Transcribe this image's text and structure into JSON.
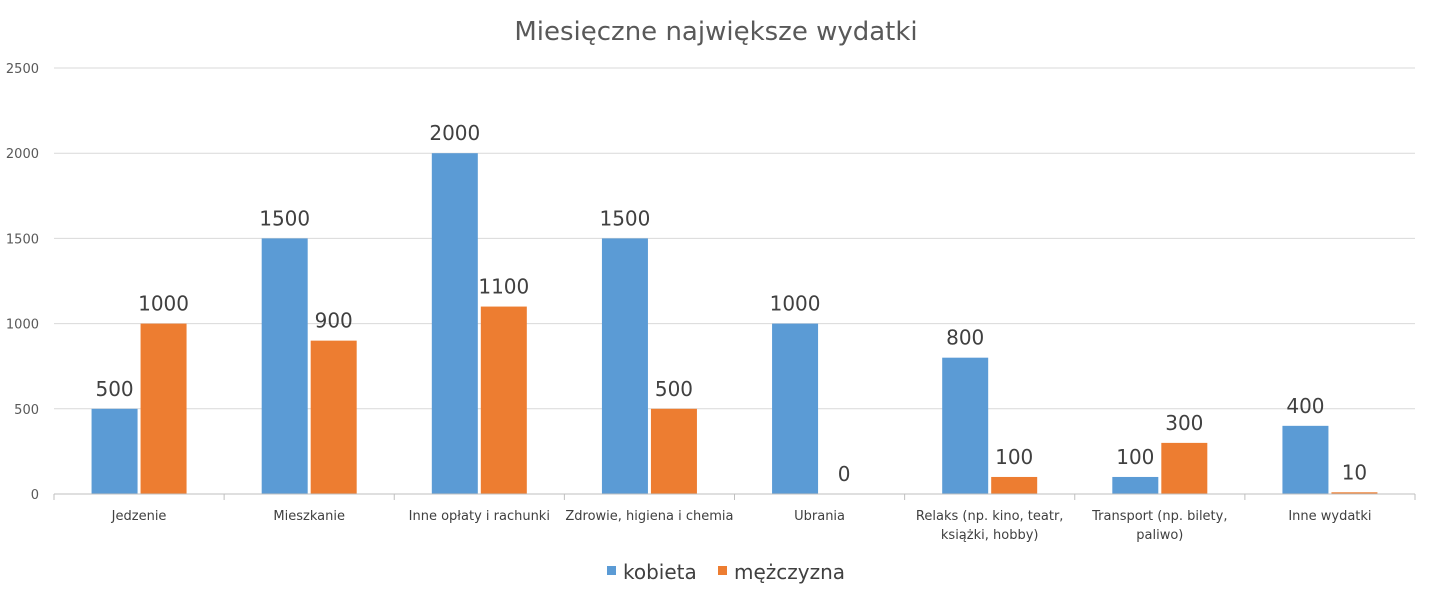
{
  "chart_data": {
    "type": "bar",
    "title": "Miesięczne największe wydatki",
    "xlabel": "",
    "ylabel": "",
    "ylim": [
      0,
      2500
    ],
    "yticks": [
      0,
      500,
      1000,
      1500,
      2000,
      2500
    ],
    "ytick_labels": [
      "0",
      "500",
      "1000",
      "1500",
      "2000",
      "2500"
    ],
    "grid": true,
    "legend": "bottom",
    "categories": [
      [
        "Jedzenie"
      ],
      [
        "Mieszkanie"
      ],
      [
        "Inne opłaty i rachunki"
      ],
      [
        "Zdrowie, higiena i chemia"
      ],
      [
        "Ubrania"
      ],
      [
        "Relaks (np. kino, teatr,",
        "książki, hobby)"
      ],
      [
        "Transport (np. bilety,",
        "paliwo)"
      ],
      [
        "Inne wydatki"
      ]
    ],
    "series": [
      {
        "name": "kobieta",
        "color": "#5b9bd5",
        "values": [
          500,
          1500,
          2000,
          1500,
          1000,
          800,
          100,
          400
        ]
      },
      {
        "name": "mężczyzna",
        "color": "#ed7d31",
        "values": [
          1000,
          900,
          1100,
          500,
          0,
          100,
          300,
          10
        ]
      }
    ]
  }
}
